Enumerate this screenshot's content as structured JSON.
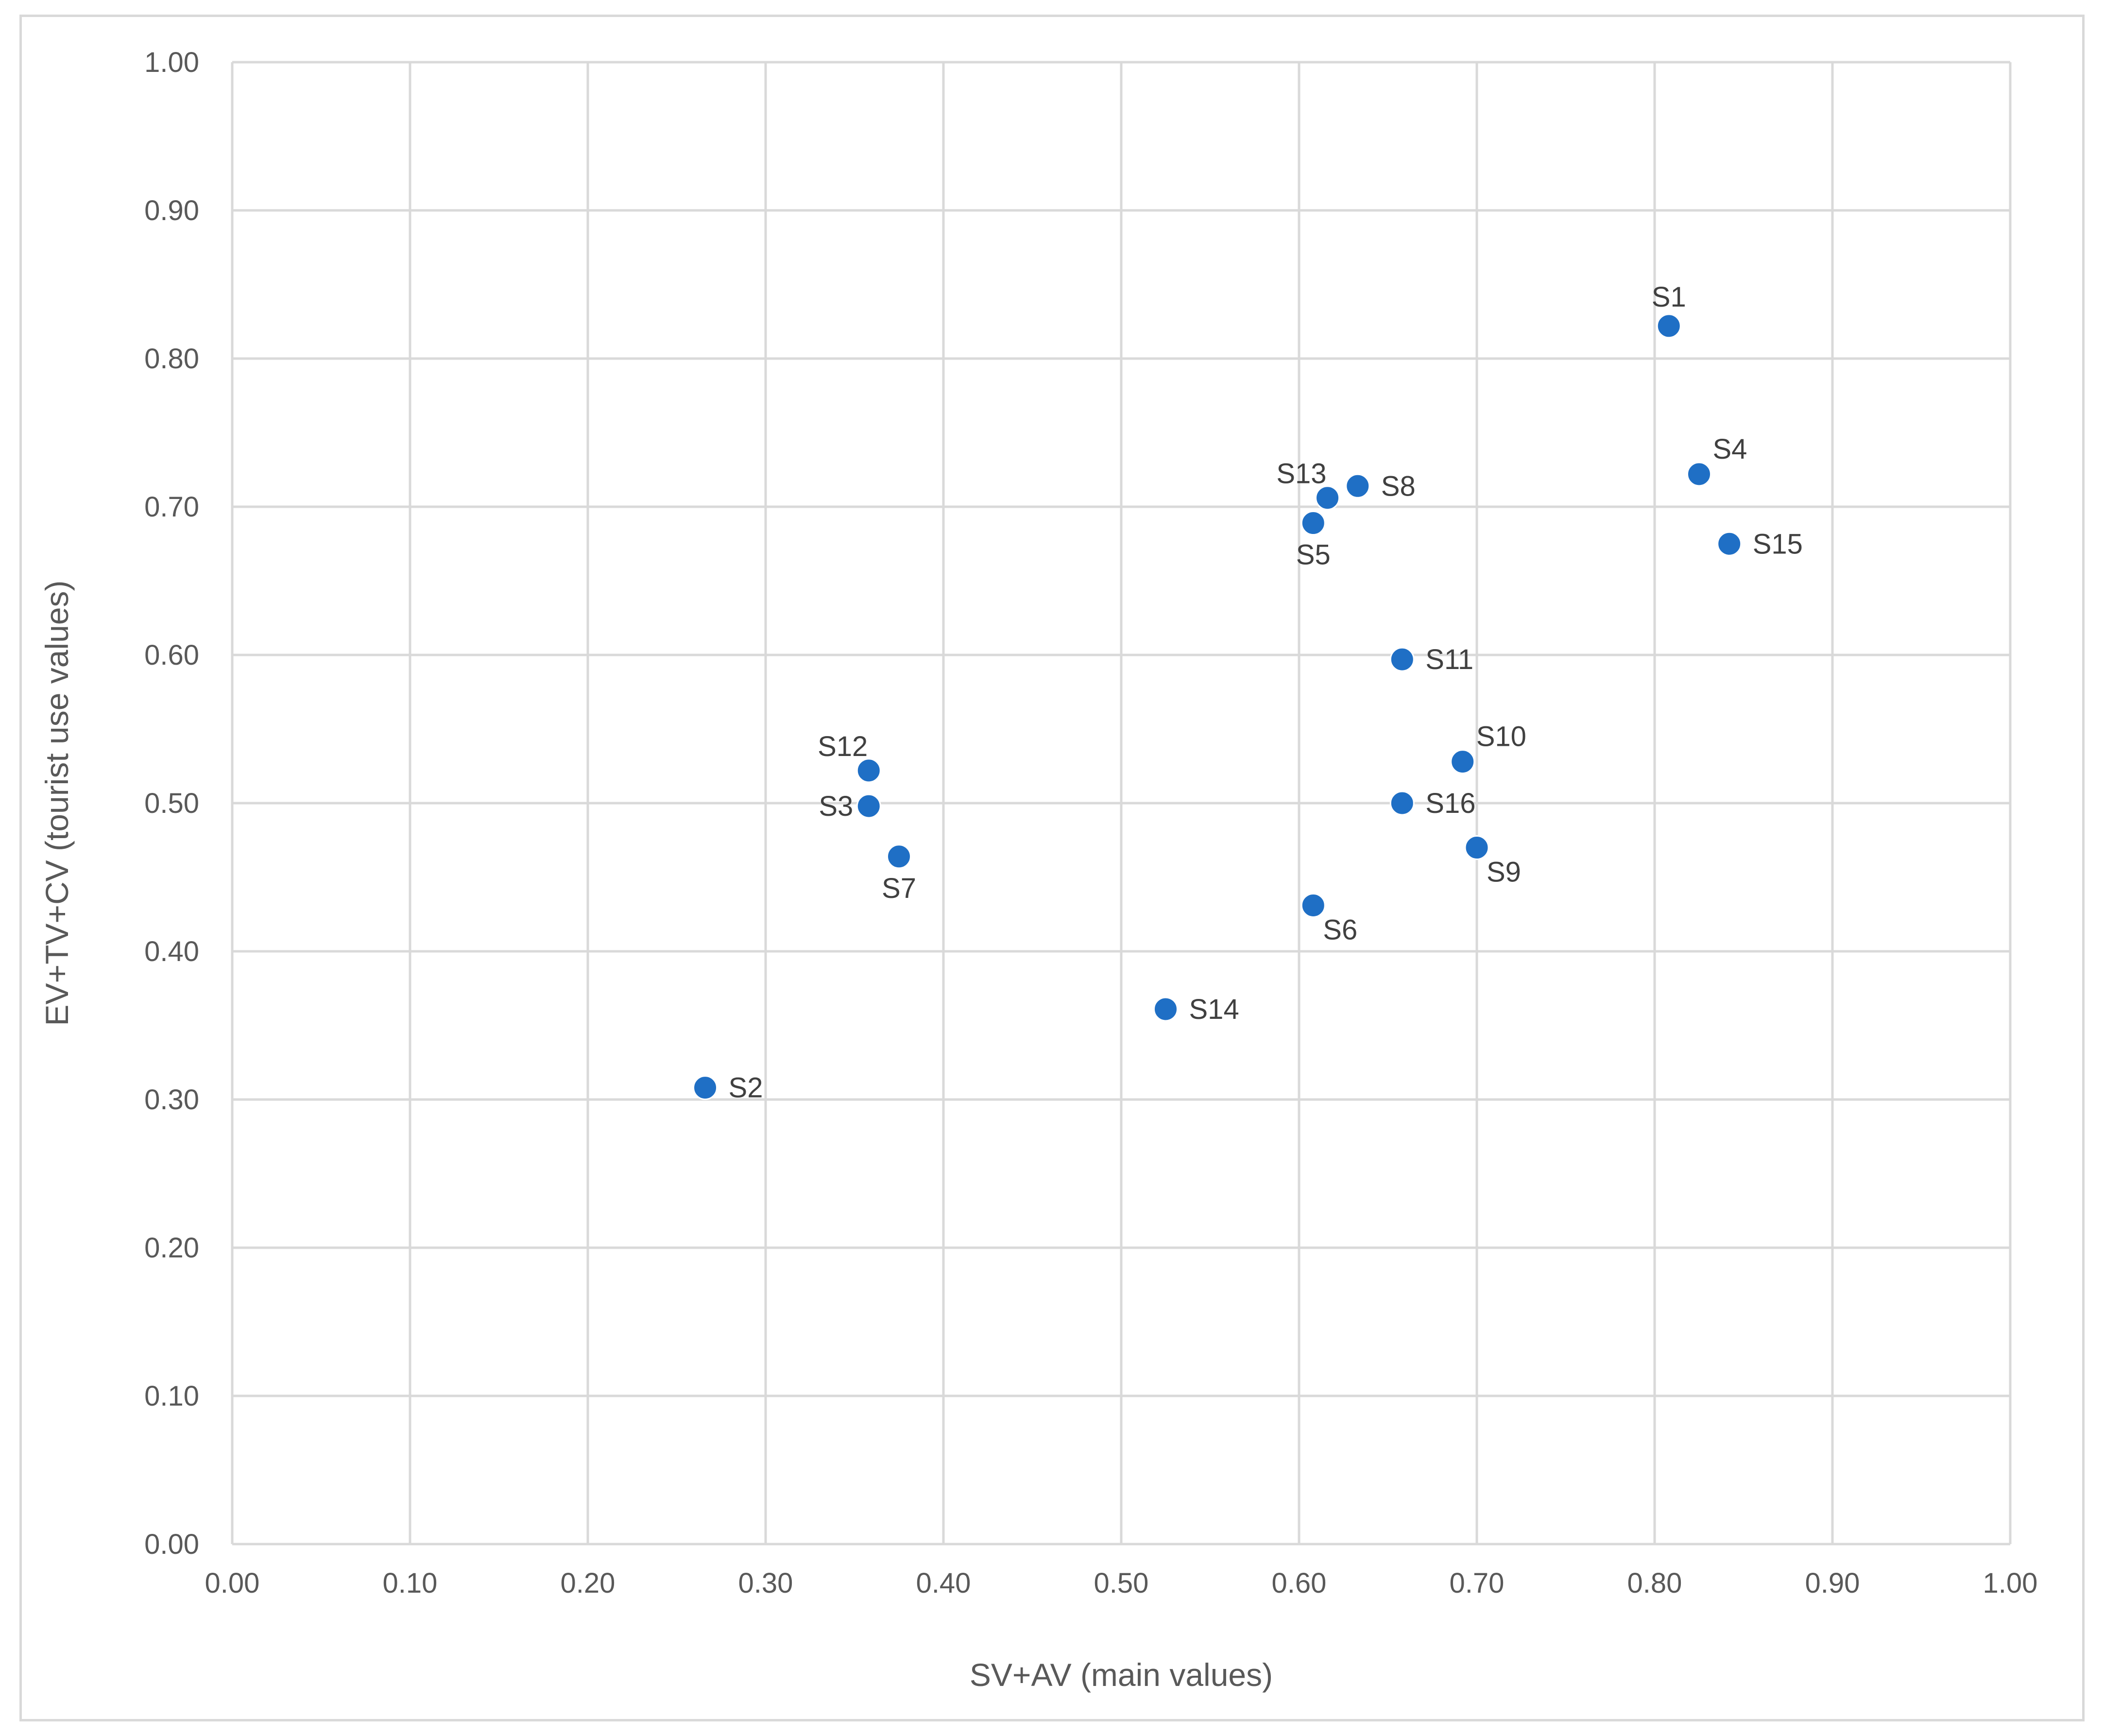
{
  "chart_data": {
    "type": "scatter",
    "title": "",
    "xlabel": "SV+AV (main values)",
    "ylabel": "EV+TV+CV (tourist use values)",
    "xlim": [
      0,
      1
    ],
    "ylim": [
      0,
      1
    ],
    "x_ticks": [
      "0.00",
      "0.10",
      "0.20",
      "0.30",
      "0.40",
      "0.50",
      "0.60",
      "0.70",
      "0.80",
      "0.90",
      "1.00"
    ],
    "y_ticks": [
      "0.00",
      "0.10",
      "0.20",
      "0.30",
      "0.40",
      "0.50",
      "0.60",
      "0.70",
      "0.80",
      "0.90",
      "1.00"
    ],
    "grid": true,
    "legend": "none",
    "marker_color": "#1f6fc5",
    "points": [
      {
        "label": "S1",
        "x": 0.808,
        "y": 0.822,
        "label_pos": "above"
      },
      {
        "label": "S2",
        "x": 0.266,
        "y": 0.308,
        "label_pos": "right"
      },
      {
        "label": "S3",
        "x": 0.358,
        "y": 0.498,
        "label_pos": "left"
      },
      {
        "label": "S4",
        "x": 0.825,
        "y": 0.722,
        "label_pos": "above-right"
      },
      {
        "label": "S5",
        "x": 0.608,
        "y": 0.689,
        "label_pos": "below"
      },
      {
        "label": "S6",
        "x": 0.608,
        "y": 0.431,
        "label_pos": "below-right"
      },
      {
        "label": "S7",
        "x": 0.375,
        "y": 0.464,
        "label_pos": "below"
      },
      {
        "label": "S8",
        "x": 0.633,
        "y": 0.714,
        "label_pos": "right"
      },
      {
        "label": "S9",
        "x": 0.7,
        "y": 0.47,
        "label_pos": "below-right"
      },
      {
        "label": "S10",
        "x": 0.692,
        "y": 0.528,
        "label_pos": "above-right"
      },
      {
        "label": "S11",
        "x": 0.658,
        "y": 0.597,
        "label_pos": "right"
      },
      {
        "label": "S12",
        "x": 0.358,
        "y": 0.522,
        "label_pos": "above-left"
      },
      {
        "label": "S13",
        "x": 0.616,
        "y": 0.706,
        "label_pos": "above-left"
      },
      {
        "label": "S14",
        "x": 0.525,
        "y": 0.361,
        "label_pos": "right"
      },
      {
        "label": "S15",
        "x": 0.842,
        "y": 0.675,
        "label_pos": "right"
      },
      {
        "label": "S16",
        "x": 0.658,
        "y": 0.5,
        "label_pos": "right"
      }
    ]
  }
}
